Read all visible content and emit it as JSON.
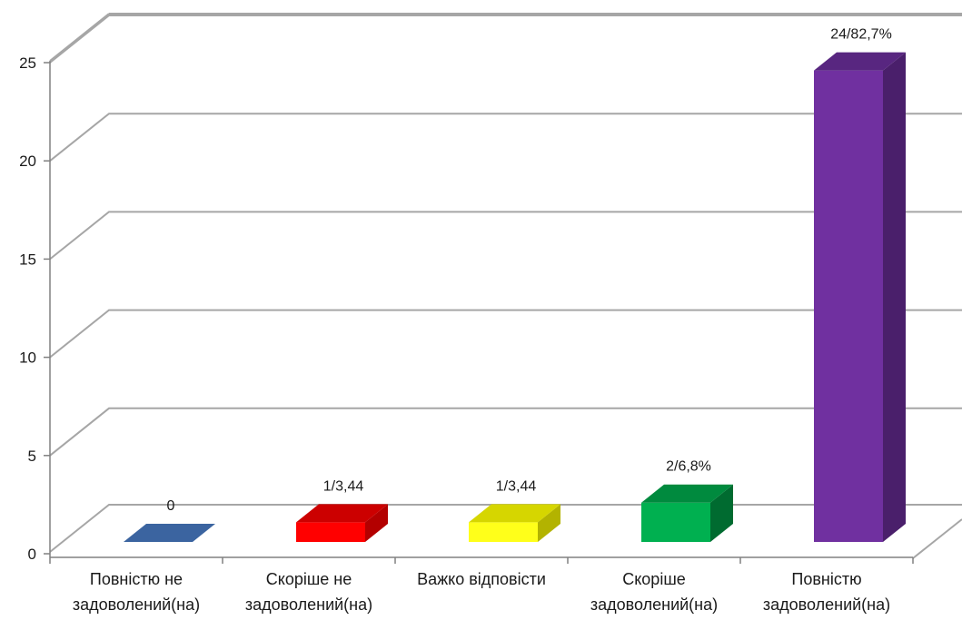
{
  "chart_data": {
    "type": "bar",
    "categories": [
      [
        "Повністю не",
        "задоволений(на)"
      ],
      [
        "Скоріше не",
        "задоволений(на)"
      ],
      [
        "Важко відповісти"
      ],
      [
        "Скоріше",
        "задоволений(на)"
      ],
      [
        "Повністю",
        "задоволений(на)"
      ]
    ],
    "values": [
      0,
      1,
      1,
      2,
      24
    ],
    "data_labels": [
      "0",
      "1/3,44",
      "1/3,44",
      "2/6,8%",
      "24/82,7%"
    ],
    "colors": [
      {
        "front": "#3b64a0",
        "top": "#4a76b8",
        "side": "#2c4d7e"
      },
      {
        "front": "#ff0000",
        "top": "#cc0000",
        "side": "#b30000"
      },
      {
        "front": "#ffff1a",
        "top": "#d6d600",
        "side": "#b3b300"
      },
      {
        "front": "#00b050",
        "top": "#008a3e",
        "side": "#006b30"
      },
      {
        "front": "#7030a0",
        "top": "#582680",
        "side": "#4a1f6b"
      }
    ],
    "y_ticks": [
      0,
      5,
      10,
      15,
      20,
      25
    ],
    "ylim": [
      0,
      25
    ],
    "grid": true,
    "legend": "none",
    "title": "",
    "xlabel": "",
    "ylabel": ""
  }
}
